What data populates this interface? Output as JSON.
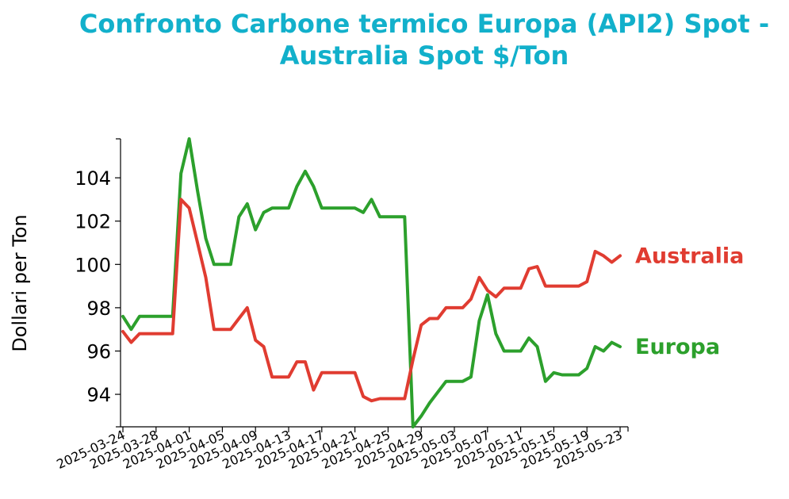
{
  "chart_data": {
    "type": "line",
    "title_lines": [
      "Confronto Carbone termico Europa (API2) Spot -",
      "Australia Spot $/Ton"
    ],
    "xlabel": "",
    "ylabel": "Dollari per Ton",
    "ylim": [
      92.5,
      105.8
    ],
    "yticks": [
      94,
      96,
      98,
      100,
      102,
      104
    ],
    "xticks": [
      "2025-03-24",
      "2025-03-28",
      "2025-04-01",
      "2025-04-05",
      "2025-04-09",
      "2025-04-13",
      "2025-04-17",
      "2025-04-21",
      "2025-04-25",
      "2025-04-29",
      "2025-05-03",
      "2025-05-07",
      "2025-05-11",
      "2025-05-15",
      "2025-05-19",
      "2025-05-23"
    ],
    "x_start": "2025-03-24",
    "x_end": "2025-05-23",
    "colors": {
      "Australia": "#E03C31",
      "Europa": "#2CA02C"
    },
    "series": [
      {
        "name": "Europa",
        "color": "#2CA02C",
        "points": [
          [
            "2025-03-24",
            97.6
          ],
          [
            "2025-03-25",
            97.0
          ],
          [
            "2025-03-26",
            97.6
          ],
          [
            "2025-03-27",
            97.6
          ],
          [
            "2025-03-28",
            97.6
          ],
          [
            "2025-03-29",
            97.6
          ],
          [
            "2025-03-30",
            97.6
          ],
          [
            "2025-03-31",
            104.2
          ],
          [
            "2025-04-01",
            105.8
          ],
          [
            "2025-04-02",
            103.4
          ],
          [
            "2025-04-03",
            101.2
          ],
          [
            "2025-04-04",
            100.0
          ],
          [
            "2025-04-05",
            100.0
          ],
          [
            "2025-04-06",
            100.0
          ],
          [
            "2025-04-07",
            102.2
          ],
          [
            "2025-04-08",
            102.8
          ],
          [
            "2025-04-09",
            101.6
          ],
          [
            "2025-04-10",
            102.4
          ],
          [
            "2025-04-11",
            102.6
          ],
          [
            "2025-04-12",
            102.6
          ],
          [
            "2025-04-13",
            102.6
          ],
          [
            "2025-04-14",
            103.6
          ],
          [
            "2025-04-15",
            104.3
          ],
          [
            "2025-04-16",
            103.6
          ],
          [
            "2025-04-17",
            102.6
          ],
          [
            "2025-04-18",
            102.6
          ],
          [
            "2025-04-19",
            102.6
          ],
          [
            "2025-04-20",
            102.6
          ],
          [
            "2025-04-21",
            102.6
          ],
          [
            "2025-04-22",
            102.4
          ],
          [
            "2025-04-23",
            103.0
          ],
          [
            "2025-04-24",
            102.2
          ],
          [
            "2025-04-25",
            102.2
          ],
          [
            "2025-04-26",
            102.2
          ],
          [
            "2025-04-27",
            102.2
          ],
          [
            "2025-04-28",
            92.5
          ],
          [
            "2025-04-29",
            93.0
          ],
          [
            "2025-04-30",
            93.6
          ],
          [
            "2025-05-01",
            94.1
          ],
          [
            "2025-05-02",
            94.6
          ],
          [
            "2025-05-03",
            94.6
          ],
          [
            "2025-05-04",
            94.6
          ],
          [
            "2025-05-05",
            94.8
          ],
          [
            "2025-05-06",
            97.4
          ],
          [
            "2025-05-07",
            98.6
          ],
          [
            "2025-05-08",
            96.8
          ],
          [
            "2025-05-09",
            96.0
          ],
          [
            "2025-05-10",
            96.0
          ],
          [
            "2025-05-11",
            96.0
          ],
          [
            "2025-05-12",
            96.6
          ],
          [
            "2025-05-13",
            96.2
          ],
          [
            "2025-05-14",
            94.6
          ],
          [
            "2025-05-15",
            95.0
          ],
          [
            "2025-05-16",
            94.9
          ],
          [
            "2025-05-17",
            94.9
          ],
          [
            "2025-05-18",
            94.9
          ],
          [
            "2025-05-19",
            95.2
          ],
          [
            "2025-05-20",
            96.2
          ],
          [
            "2025-05-21",
            96.0
          ],
          [
            "2025-05-22",
            96.4
          ],
          [
            "2025-05-23",
            96.2
          ]
        ]
      },
      {
        "name": "Australia",
        "color": "#E03C31",
        "points": [
          [
            "2025-03-24",
            96.9
          ],
          [
            "2025-03-25",
            96.4
          ],
          [
            "2025-03-26",
            96.8
          ],
          [
            "2025-03-27",
            96.8
          ],
          [
            "2025-03-28",
            96.8
          ],
          [
            "2025-03-29",
            96.8
          ],
          [
            "2025-03-30",
            96.8
          ],
          [
            "2025-03-31",
            103.0
          ],
          [
            "2025-04-01",
            102.6
          ],
          [
            "2025-04-02",
            101.0
          ],
          [
            "2025-04-03",
            99.4
          ],
          [
            "2025-04-04",
            97.0
          ],
          [
            "2025-04-05",
            97.0
          ],
          [
            "2025-04-06",
            97.0
          ],
          [
            "2025-04-07",
            97.5
          ],
          [
            "2025-04-08",
            98.0
          ],
          [
            "2025-04-09",
            96.5
          ],
          [
            "2025-04-10",
            96.2
          ],
          [
            "2025-04-11",
            94.8
          ],
          [
            "2025-04-12",
            94.8
          ],
          [
            "2025-04-13",
            94.8
          ],
          [
            "2025-04-14",
            95.5
          ],
          [
            "2025-04-15",
            95.5
          ],
          [
            "2025-04-16",
            94.2
          ],
          [
            "2025-04-17",
            95.0
          ],
          [
            "2025-04-18",
            95.0
          ],
          [
            "2025-04-19",
            95.0
          ],
          [
            "2025-04-20",
            95.0
          ],
          [
            "2025-04-21",
            95.0
          ],
          [
            "2025-04-22",
            93.9
          ],
          [
            "2025-04-23",
            93.7
          ],
          [
            "2025-04-24",
            93.8
          ],
          [
            "2025-04-25",
            93.8
          ],
          [
            "2025-04-26",
            93.8
          ],
          [
            "2025-04-27",
            93.8
          ],
          [
            "2025-04-28",
            95.6
          ],
          [
            "2025-04-29",
            97.2
          ],
          [
            "2025-04-30",
            97.5
          ],
          [
            "2025-05-01",
            97.5
          ],
          [
            "2025-05-02",
            98.0
          ],
          [
            "2025-05-03",
            98.0
          ],
          [
            "2025-05-04",
            98.0
          ],
          [
            "2025-05-05",
            98.4
          ],
          [
            "2025-05-06",
            99.4
          ],
          [
            "2025-05-07",
            98.8
          ],
          [
            "2025-05-08",
            98.5
          ],
          [
            "2025-05-09",
            98.9
          ],
          [
            "2025-05-10",
            98.9
          ],
          [
            "2025-05-11",
            98.9
          ],
          [
            "2025-05-12",
            99.8
          ],
          [
            "2025-05-13",
            99.9
          ],
          [
            "2025-05-14",
            99.0
          ],
          [
            "2025-05-15",
            99.0
          ],
          [
            "2025-05-16",
            99.0
          ],
          [
            "2025-05-17",
            99.0
          ],
          [
            "2025-05-18",
            99.0
          ],
          [
            "2025-05-19",
            99.2
          ],
          [
            "2025-05-20",
            100.6
          ],
          [
            "2025-05-21",
            100.4
          ],
          [
            "2025-05-22",
            100.1
          ],
          [
            "2025-05-23",
            100.4
          ]
        ]
      }
    ],
    "series_labels": [
      {
        "text": "Australia",
        "color": "#E03C31"
      },
      {
        "text": "Europa",
        "color": "#2CA02C"
      }
    ],
    "grid": false,
    "legend": "inline-right"
  }
}
